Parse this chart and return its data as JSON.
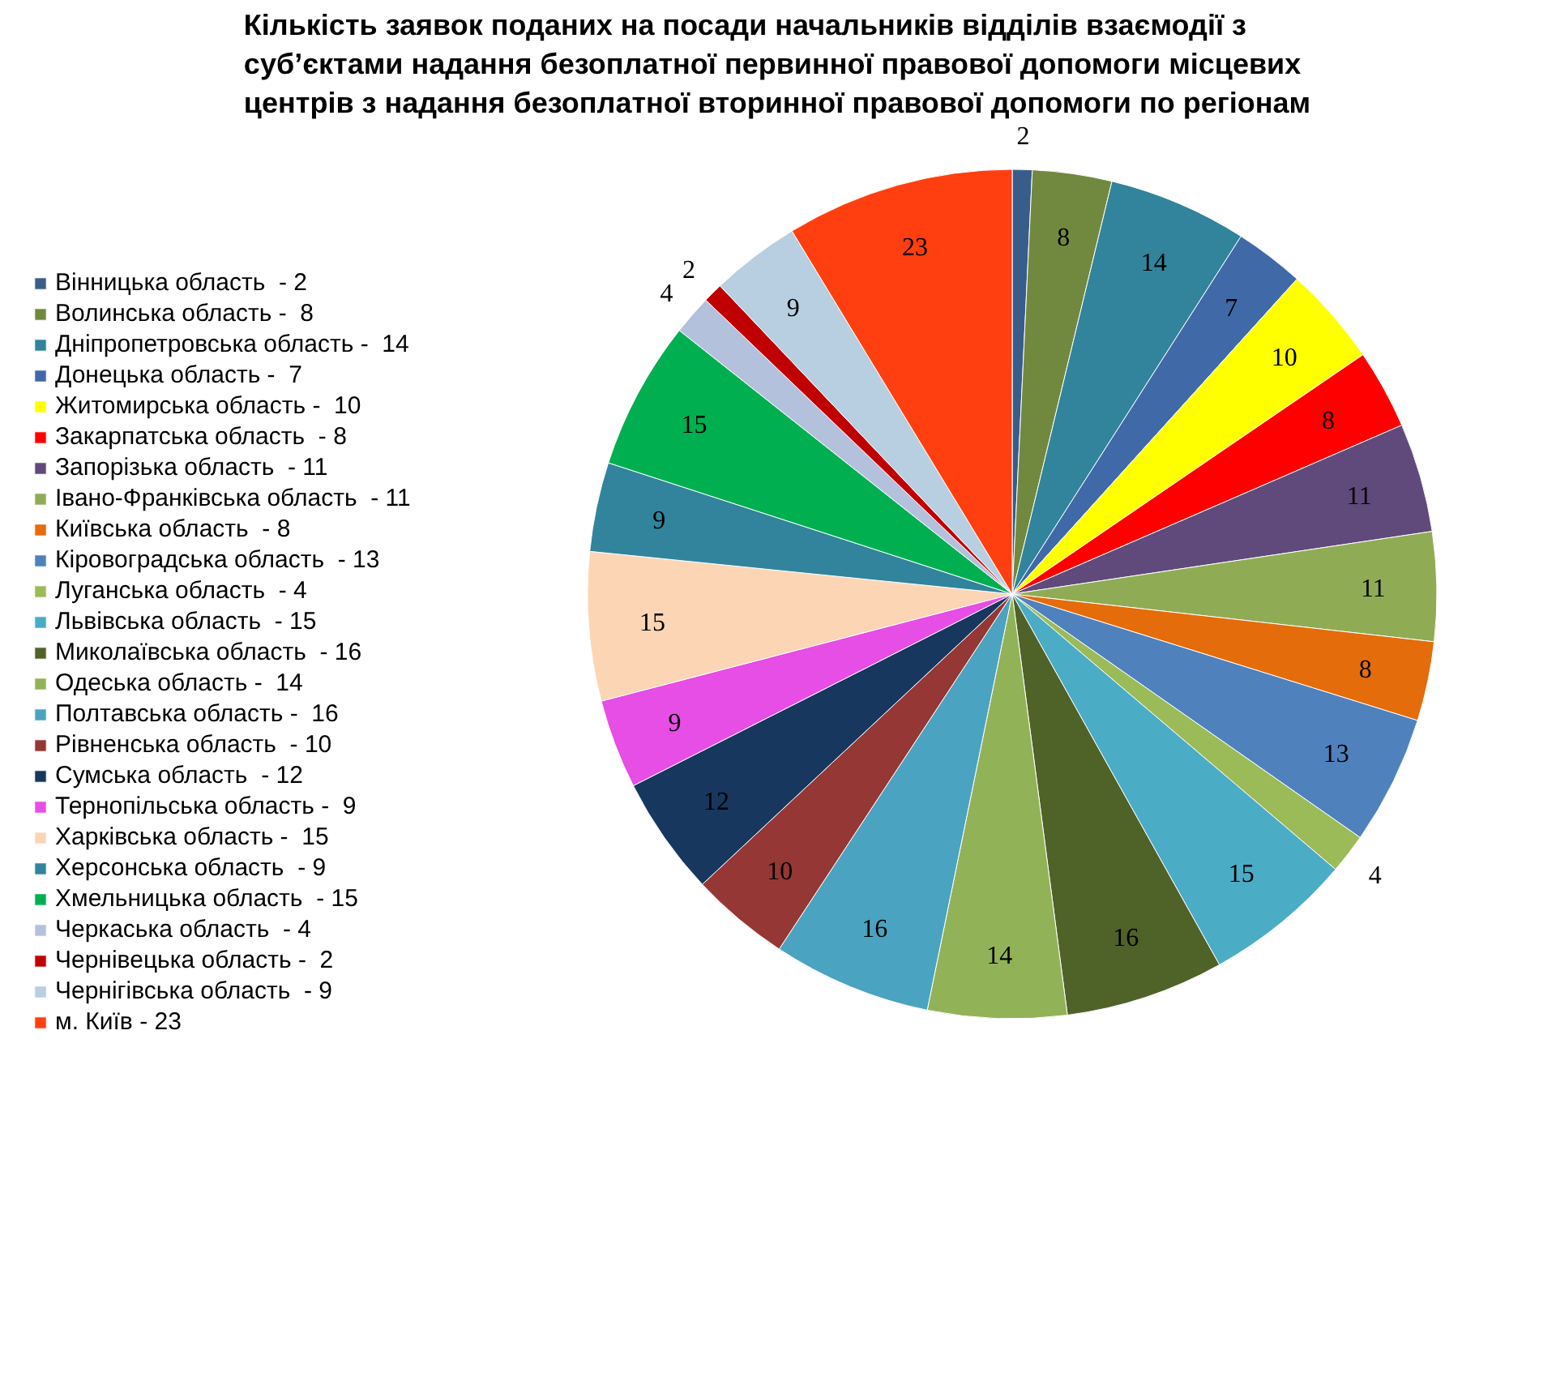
{
  "chart_data": {
    "type": "pie",
    "title": "Кількість заявок поданих на посади начальників відділів взаємодії з суб’єктами надання безоплатної первинної правової допомоги місцевих центрів з надання безоплатної вторинної правової допомоги по регіонам",
    "categories": [
      "Вінницька область  - 2",
      "Волинська область -  8",
      "Дніпропетровська область -  14",
      "Донецька область -  7",
      "Житомирська область -  10",
      "Закарпатська область  - 8",
      "Запорізька область  - 11",
      "Івано-Франківська область  - 11",
      "Київська область  - 8",
      "Кіровоградська область  - 13",
      "Луганська область  - 4",
      "Львівська область  - 15",
      "Миколаївська область  - 16",
      "Одеська область -  14",
      "Полтавська область -  16",
      "Рівненська область  - 10",
      "Сумська область  - 12",
      "Тернопільська область -  9",
      "Харківська область -  15",
      "Херсонська область  - 9",
      "Хмельницька область  - 15",
      "Черкаська область  - 4",
      "Чернівецька область -  2",
      "Чернігівська область  - 9",
      "м. Київ - 23"
    ],
    "values": [
      2,
      8,
      14,
      7,
      10,
      8,
      11,
      11,
      8,
      13,
      4,
      15,
      16,
      14,
      16,
      10,
      12,
      9,
      15,
      9,
      15,
      4,
      2,
      9,
      23
    ],
    "colors": [
      "#385d8a",
      "#71893f",
      "#31849b",
      "#4069a8",
      "#ffff00",
      "#ff0000",
      "#604a7b",
      "#8fac55",
      "#e46c0a",
      "#4f81bd",
      "#9bbb59",
      "#4bacc6",
      "#4f6228",
      "#92b257",
      "#4aa3c0",
      "#953735",
      "#17375e",
      "#e64ee6",
      "#fcd5b5",
      "#31849b",
      "#00b050",
      "#b3c1dd",
      "#c00000",
      "#b7cfe0",
      "#ff3f0f"
    ],
    "data_labels": true,
    "legend": "left"
  }
}
